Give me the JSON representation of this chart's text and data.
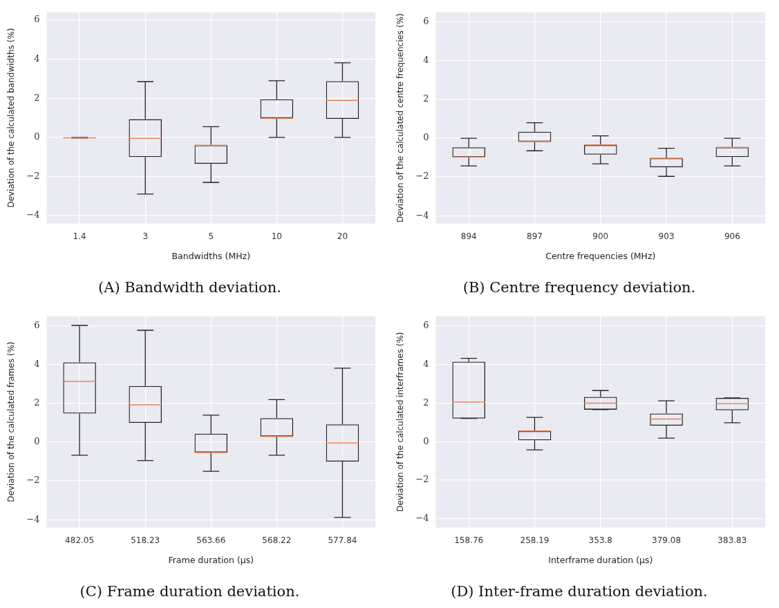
{
  "chart_data": [
    {
      "type": "box",
      "title": "(A) Bandwidth deviation.",
      "xlabel": "Bandwidths (MHz)",
      "ylabel": "Deviation of the calculated bandwidths (%)",
      "categories": [
        "1.4",
        "3",
        "5",
        "10",
        "20"
      ],
      "ylim": [
        -4.4,
        6.4
      ],
      "yticks": [
        -4,
        -2,
        0,
        2,
        4,
        6
      ],
      "grid": true,
      "series": [
        {
          "color": "#222222",
          "boxes": [
            {
              "low": -0.03,
              "q1": -0.03,
              "median": -0.02,
              "q3": 0,
              "high": 0
            },
            {
              "low": -2.9,
              "q1": -1.0,
              "median": -0.05,
              "q3": 0.93,
              "high": 2.85
            },
            {
              "low": -2.3,
              "q1": -1.35,
              "median": -0.4,
              "q3": -0.4,
              "high": 0.55
            },
            {
              "low": 0,
              "q1": 0.98,
              "median": 0.98,
              "q3": 1.95,
              "high": 2.9
            },
            {
              "low": 0,
              "q1": 0.95,
              "median": 1.9,
              "q3": 2.88,
              "high": 3.82
            }
          ]
        }
      ]
    },
    {
      "type": "box",
      "title": "(B) Centre frequency deviation.",
      "xlabel": "Centre frequencies (MHz)",
      "ylabel": "Deviation of the calculated centre frequencies (%)",
      "categories": [
        "894",
        "897",
        "900",
        "903",
        "906"
      ],
      "ylim": [
        -4.4,
        6.5
      ],
      "yticks": [
        -4,
        -2,
        0,
        2,
        4,
        6
      ],
      "grid": true,
      "series": [
        {
          "color": "#222222",
          "boxes": [
            {
              "low": -1.43,
              "q1": -0.97,
              "median": -0.97,
              "q3": -0.47,
              "high": 0
            },
            {
              "low": -0.65,
              "q1": -0.18,
              "median": -0.18,
              "q3": 0.33,
              "high": 0.8
            },
            {
              "low": -1.32,
              "q1": -0.85,
              "median": -0.35,
              "q3": -0.35,
              "high": 0.12
            },
            {
              "low": -1.97,
              "q1": -1.5,
              "median": -1.03,
              "q3": -1.03,
              "high": -0.52
            },
            {
              "low": -1.43,
              "q1": -0.97,
              "median": -0.47,
              "q3": -0.47,
              "high": 0
            }
          ]
        }
      ]
    },
    {
      "type": "box",
      "title": "(C) Frame duration deviation.",
      "xlabel": "Frame duration (μs)",
      "ylabel": "Deviation of the calculated frames (%)",
      "categories": [
        "482.05",
        "518.23",
        "563.66",
        "568.22",
        "577.84"
      ],
      "ylim": [
        -4.4,
        6.5
      ],
      "yticks": [
        -4,
        -2,
        0,
        2,
        4,
        6
      ],
      "grid": true,
      "series": [
        {
          "color": "#222222",
          "boxes": [
            {
              "low": -0.67,
              "q1": 1.48,
              "median": 3.14,
              "q3": 4.12,
              "high": 6.03
            },
            {
              "low": -0.95,
              "q1": 1.0,
              "median": 1.93,
              "q3": 2.9,
              "high": 5.78
            },
            {
              "low": -1.5,
              "q1": -0.53,
              "median": -0.53,
              "q3": 0.44,
              "high": 1.4
            },
            {
              "low": -0.67,
              "q1": 0.3,
              "median": 0.3,
              "q3": 1.24,
              "high": 2.2
            },
            {
              "low": -3.88,
              "q1": -1.0,
              "median": -0.03,
              "q3": 0.92,
              "high": 3.82
            }
          ]
        }
      ]
    },
    {
      "type": "box",
      "title": "(D) Inter-frame duration deviation.",
      "xlabel": "Interframe duration (μs)",
      "ylabel": "Deviation of the calculated interframes (%)",
      "categories": [
        "158.76",
        "258.19",
        "353.8",
        "379.08",
        "383.83"
      ],
      "ylim": [
        -4.45,
        6.5
      ],
      "yticks": [
        -4,
        -2,
        0,
        2,
        4,
        6
      ],
      "grid": true,
      "series": [
        {
          "color": "#222222",
          "boxes": [
            {
              "low": 1.2,
              "q1": 1.2,
              "median": 2.05,
              "q3": 4.15,
              "high": 4.32
            },
            {
              "low": -0.43,
              "q1": 0.07,
              "median": 0.55,
              "q3": 0.55,
              "high": 1.26
            },
            {
              "low": 1.66,
              "q1": 1.66,
              "median": 2.0,
              "q3": 2.32,
              "high": 2.65
            },
            {
              "low": 0.18,
              "q1": 0.83,
              "median": 1.17,
              "q3": 1.46,
              "high": 2.12
            },
            {
              "low": 0.98,
              "q1": 1.63,
              "median": 1.97,
              "q3": 2.27,
              "high": 2.27
            }
          ]
        }
      ]
    }
  ]
}
